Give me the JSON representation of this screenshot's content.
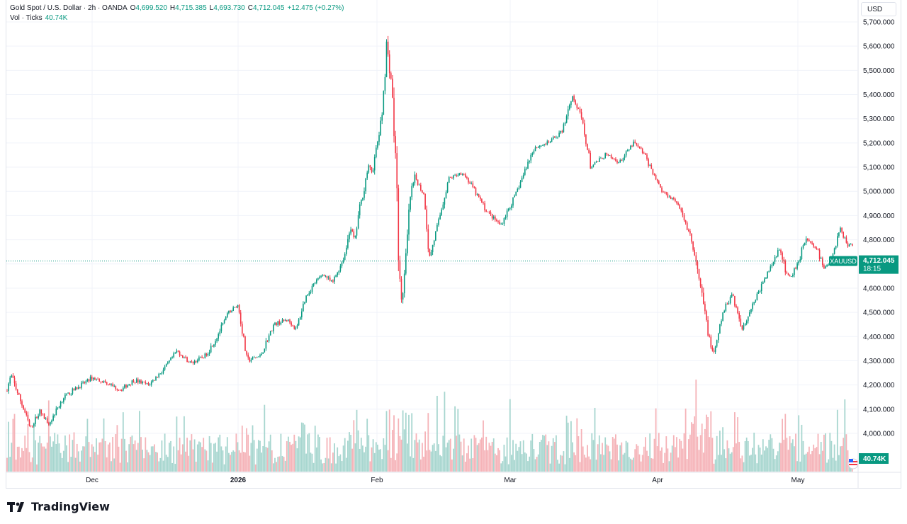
{
  "header": {
    "symbol": "Gold Spot / U.S. Dollar · 2h · OANDA",
    "open_label": "O",
    "open": "4,699.520",
    "high_label": "H",
    "high": "4,715.385",
    "low_label": "L",
    "low": "4,693.730",
    "close_label": "C",
    "close": "4,712.045",
    "change": "+12.475 (+0.27%)",
    "vol_label": "Vol · Ticks",
    "vol_value": "40.74K"
  },
  "currency": "USD",
  "brand": "TradingView",
  "colors": {
    "up": "#089981",
    "down": "#f23645",
    "vol_up": "#a7d6cf",
    "vol_down": "#f5b3b8",
    "grid": "#f0f3fa",
    "text": "#131722"
  },
  "chart_data": {
    "type": "candlestick",
    "instrument": "XAUUSD",
    "y_axis": {
      "ticks": [
        "5,700.000",
        "5,600.000",
        "5,500.000",
        "5,400.000",
        "5,300.000",
        "5,200.000",
        "5,100.000",
        "5,000.000",
        "4,900.000",
        "4,800.000",
        "4,700.000",
        "4,600.000",
        "4,500.000",
        "4,400.000",
        "4,300.000",
        "4,200.000",
        "4,100.000",
        "4,000.000"
      ],
      "tick_values": [
        5700,
        5600,
        5500,
        5400,
        5300,
        5200,
        5100,
        5000,
        4900,
        4800,
        4700,
        4600,
        4500,
        4400,
        4300,
        4200,
        4100,
        4000
      ],
      "range": [
        3935,
        5700
      ]
    },
    "x_axis": {
      "labels": [
        "Dec",
        "2026",
        "Feb",
        "Mar",
        "Apr",
        "May"
      ],
      "bold": [
        false,
        true,
        false,
        false,
        false,
        false
      ],
      "range_dates": [
        "2025-11-13",
        "2026-05-14"
      ]
    },
    "last_price": {
      "label": "XAUUSD",
      "value": "4,712.045",
      "countdown": "18:15",
      "price": 4712.045
    },
    "volume_label": "40.74K",
    "price_path": [
      [
        "2025-11-13",
        4175
      ],
      [
        "2025-11-14",
        4240
      ],
      [
        "2025-11-17",
        4080
      ],
      [
        "2025-11-18",
        4020
      ],
      [
        "2025-11-20",
        4090
      ],
      [
        "2025-11-22",
        4040
      ],
      [
        "2025-11-25",
        4150
      ],
      [
        "2025-11-28",
        4190
      ],
      [
        "2025-12-01",
        4230
      ],
      [
        "2025-12-04",
        4210
      ],
      [
        "2025-12-07",
        4180
      ],
      [
        "2025-12-10",
        4220
      ],
      [
        "2025-12-13",
        4200
      ],
      [
        "2025-12-16",
        4260
      ],
      [
        "2025-12-19",
        4340
      ],
      [
        "2025-12-22",
        4290
      ],
      [
        "2025-12-25",
        4320
      ],
      [
        "2025-12-27",
        4380
      ],
      [
        "2025-12-30",
        4500
      ],
      [
        "2026-01-01",
        4530
      ],
      [
        "2026-01-03",
        4300
      ],
      [
        "2026-01-06",
        4320
      ],
      [
        "2026-01-09",
        4450
      ],
      [
        "2026-01-12",
        4470
      ],
      [
        "2026-01-14",
        4430
      ],
      [
        "2026-01-16",
        4560
      ],
      [
        "2026-01-18",
        4620
      ],
      [
        "2026-01-20",
        4660
      ],
      [
        "2026-01-22",
        4620
      ],
      [
        "2026-01-24",
        4700
      ],
      [
        "2026-01-25",
        4750
      ],
      [
        "2026-01-26",
        4860
      ],
      [
        "2026-01-27",
        4790
      ],
      [
        "2026-01-28",
        4920
      ],
      [
        "2026-01-29",
        5000
      ],
      [
        "2026-01-30",
        5100
      ],
      [
        "2026-01-31",
        5080
      ],
      [
        "2026-02-02",
        5300
      ],
      [
        "2026-02-03",
        5600
      ],
      [
        "2026-02-04",
        5460
      ],
      [
        "2026-02-05",
        5100
      ],
      [
        "2026-02-06",
        4500
      ],
      [
        "2026-02-07",
        4700
      ],
      [
        "2026-02-08",
        4980
      ],
      [
        "2026-02-09",
        5060
      ],
      [
        "2026-02-11",
        4980
      ],
      [
        "2026-02-12",
        4720
      ],
      [
        "2026-02-14",
        4880
      ],
      [
        "2026-02-16",
        5050
      ],
      [
        "2026-02-19",
        5080
      ],
      [
        "2026-02-21",
        5020
      ],
      [
        "2026-02-24",
        4920
      ],
      [
        "2026-02-27",
        4860
      ],
      [
        "2026-03-02",
        4980
      ],
      [
        "2026-03-04",
        5080
      ],
      [
        "2026-03-06",
        5180
      ],
      [
        "2026-03-09",
        5200
      ],
      [
        "2026-03-12",
        5250
      ],
      [
        "2026-03-14",
        5400
      ],
      [
        "2026-03-16",
        5300
      ],
      [
        "2026-03-18",
        5100
      ],
      [
        "2026-03-21",
        5150
      ],
      [
        "2026-03-24",
        5120
      ],
      [
        "2026-03-27",
        5200
      ],
      [
        "2026-03-29",
        5160
      ],
      [
        "2026-04-02",
        5000
      ],
      [
        "2026-04-05",
        4960
      ],
      [
        "2026-04-08",
        4820
      ],
      [
        "2026-04-10",
        4620
      ],
      [
        "2026-04-12",
        4400
      ],
      [
        "2026-04-13",
        4320
      ],
      [
        "2026-04-15",
        4500
      ],
      [
        "2026-04-17",
        4580
      ],
      [
        "2026-04-19",
        4430
      ],
      [
        "2026-04-22",
        4560
      ],
      [
        "2026-04-25",
        4680
      ],
      [
        "2026-04-27",
        4760
      ],
      [
        "2026-04-29",
        4640
      ],
      [
        "2026-05-01",
        4700
      ],
      [
        "2026-05-03",
        4810
      ],
      [
        "2026-05-06",
        4760
      ],
      [
        "2026-05-08",
        4680
      ],
      [
        "2026-05-10",
        4720
      ],
      [
        "2026-05-12",
        4850
      ],
      [
        "2026-05-14",
        4780
      ]
    ]
  }
}
